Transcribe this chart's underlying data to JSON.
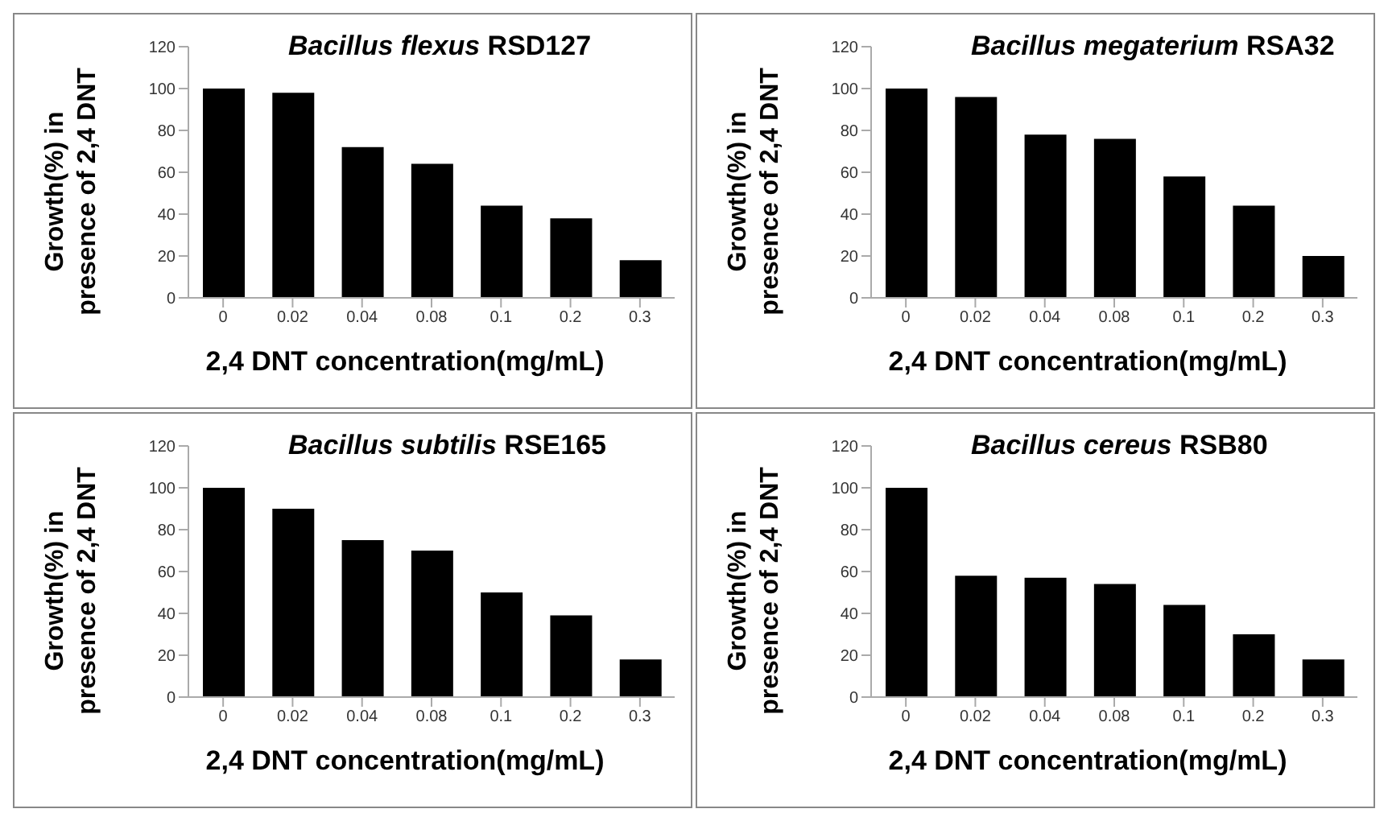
{
  "chart_data": [
    {
      "type": "bar",
      "title": "Bacillus flexus RSD127",
      "xlabel": "2,4 DNT concentration(mg/mL)",
      "ylabel": "Growth(%) in presence of 2,4 DNT",
      "categories": [
        "0",
        "0.02",
        "0.04",
        "0.08",
        "0.1",
        "0.2",
        "0.3"
      ],
      "values": [
        100,
        98,
        72,
        64,
        44,
        38,
        18
      ],
      "color": "#000000",
      "ylim": [
        0,
        120
      ],
      "yticks": [
        0,
        20,
        40,
        60,
        80,
        100,
        120
      ],
      "grid": false,
      "legend": false
    },
    {
      "type": "bar",
      "title": "Bacillus megaterium RSA32",
      "xlabel": "2,4 DNT concentration(mg/mL)",
      "ylabel": "Growth(%) in presence of 2,4 DNT",
      "categories": [
        "0",
        "0.02",
        "0.04",
        "0.08",
        "0.1",
        "0.2",
        "0.3"
      ],
      "values": [
        100,
        96,
        78,
        76,
        58,
        44,
        20
      ],
      "color": "#000000",
      "ylim": [
        0,
        120
      ],
      "yticks": [
        0,
        20,
        40,
        60,
        80,
        100,
        120
      ],
      "grid": false,
      "legend": false
    },
    {
      "type": "bar",
      "title": "Bacillus subtilis RSE165",
      "xlabel": "2,4 DNT concentration(mg/mL)",
      "ylabel": "Growth(%) in presence of 2,4 DNT",
      "categories": [
        "0",
        "0.02",
        "0.04",
        "0.08",
        "0.1",
        "0.2",
        "0.3"
      ],
      "values": [
        100,
        90,
        75,
        70,
        50,
        39,
        18
      ],
      "color": "#000000",
      "ylim": [
        0,
        120
      ],
      "yticks": [
        0,
        20,
        40,
        60,
        80,
        100,
        120
      ],
      "grid": false,
      "legend": false
    },
    {
      "type": "bar",
      "title": "Bacillus cereus RSB80",
      "xlabel": "2,4 DNT concentration(mg/mL)",
      "ylabel": "Growth(%) in presence of 2,4 DNT",
      "categories": [
        "0",
        "0.02",
        "0.04",
        "0.08",
        "0.1",
        "0.2",
        "0.3"
      ],
      "values": [
        100,
        58,
        57,
        54,
        44,
        30,
        18
      ],
      "color": "#000000",
      "ylim": [
        0,
        120
      ],
      "yticks": [
        0,
        20,
        40,
        60,
        80,
        100,
        120
      ],
      "grid": false,
      "legend": false
    }
  ]
}
